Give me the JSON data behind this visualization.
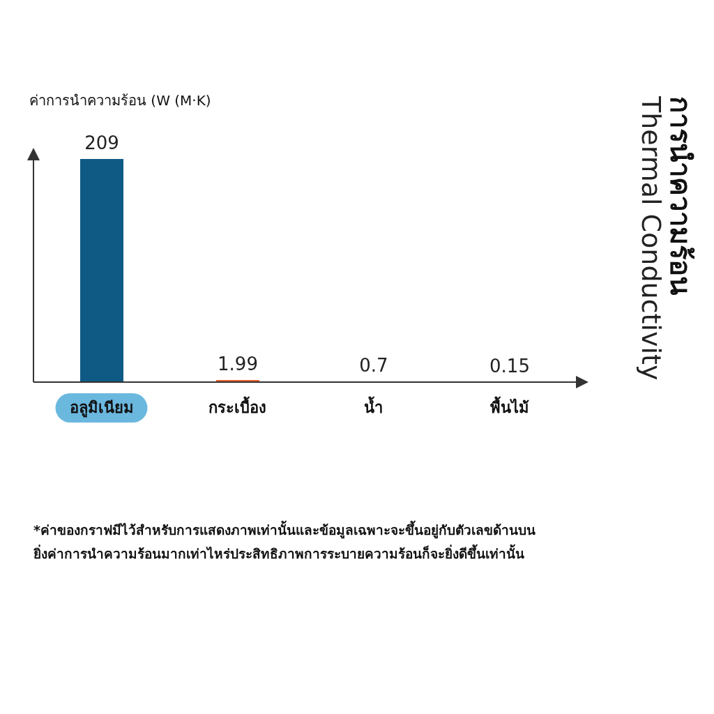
{
  "chart_data": {
    "type": "bar",
    "title": "การนำความร้อน",
    "subtitle": "Thermal Conductivity",
    "ylabel": "ค่าการนำความร้อน  (W (M·K)",
    "categories": [
      "อลูมิเนียม",
      "กระเบื้อง",
      "น้ำ",
      "พื้นไม้"
    ],
    "values": [
      209,
      1.99,
      0.7,
      0.15
    ],
    "colors": [
      "#0e5a85",
      "#e8602a",
      "#e8602a",
      "#e8602a"
    ],
    "data_labels": true,
    "grid": false,
    "legend": false,
    "annotations": [
      "*ค่าของกราฟมีไว้สำหรับการแสดงภาพเท่านั้นและข้อมูลเฉพาะจะขึ้นอยู่กับตัวเลขด้านบน",
      "ยิ่งค่าการนำความร้อนมากเท่าไหร่ประสิทธิภาพการระบายความร้อนก็จะยิ่งดีขึ้นเท่านั้น"
    ]
  }
}
